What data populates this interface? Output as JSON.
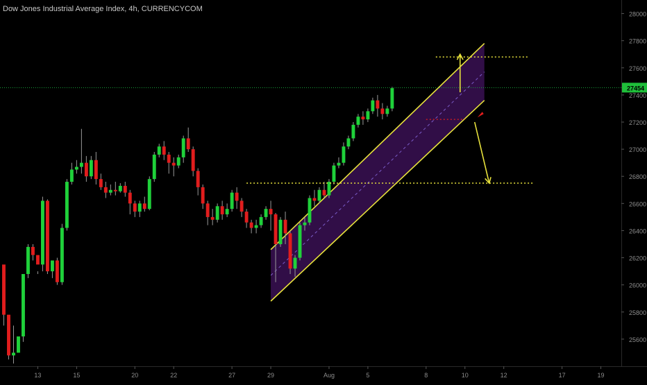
{
  "header": {
    "title": "Dow Jones Industrial Average Index, 4h, CURRENCYCOM"
  },
  "colors": {
    "background": "#000000",
    "up": "#1fd13a",
    "down": "#e11d1d",
    "wick": "#9a9a9a",
    "channel_line": "#e8e23c",
    "channel_fill": "#3a1054",
    "level": "#e8e23c",
    "price_line": "#18a63c",
    "price_badge": "#1fbf3a",
    "arrow": "#e8e23c",
    "marker_red": "#e11d1d",
    "axis_text": "#8c8c8c"
  },
  "chart_data": {
    "type": "candlestick",
    "title": "Dow Jones Industrial Average Index, 4h, CURRENCYCOM",
    "timeframe": "4h",
    "current_price": 27454,
    "current_price_label": "27454",
    "ylim": [
      25400,
      28100
    ],
    "y_ticks": [
      25600,
      25800,
      26000,
      26200,
      26400,
      26600,
      26800,
      27000,
      27200,
      27400,
      27600,
      27800,
      28000
    ],
    "y_tick_labels": [
      "25600",
      "25800",
      "26000",
      "26200",
      "26400",
      "26600",
      "26800",
      "27000",
      "27200",
      "27400",
      "27600",
      "27800",
      "28000"
    ],
    "x_ticks": [
      {
        "label": "13",
        "bar": 7
      },
      {
        "label": "15",
        "bar": 15
      },
      {
        "label": "20",
        "bar": 27
      },
      {
        "label": "22",
        "bar": 35
      },
      {
        "label": "27",
        "bar": 47
      },
      {
        "label": "29",
        "bar": 55
      },
      {
        "label": "Aug",
        "bar": 67
      },
      {
        "label": "5",
        "bar": 75
      },
      {
        "label": "8",
        "bar": 87
      },
      {
        "label": "10",
        "bar": 95
      },
      {
        "label": "12",
        "bar": 103
      },
      {
        "label": "17",
        "bar": 115
      },
      {
        "label": "19",
        "bar": 123
      }
    ],
    "bars_visible": 127,
    "candles": [
      [
        26150,
        26120,
        25780,
        25700
      ],
      [
        25780,
        25600,
        25480,
        25450
      ],
      [
        25480,
        25700,
        25500,
        25420
      ],
      [
        25500,
        25550,
        25620,
        25500
      ],
      [
        25620,
        26050,
        26080,
        25580
      ],
      [
        26080,
        26300,
        26280,
        26050
      ],
      [
        26280,
        26300,
        26220,
        26180
      ],
      [
        26220,
        26100,
        26150,
        26080
      ],
      [
        26150,
        26650,
        26620,
        26100
      ],
      [
        26620,
        26630,
        26100,
        26080
      ],
      [
        26100,
        26120,
        26180,
        26050
      ],
      [
        26180,
        26200,
        26020,
        26000
      ],
      [
        26020,
        26450,
        26420,
        26000
      ],
      [
        26420,
        26780,
        26760,
        26400
      ],
      [
        26760,
        26900,
        26850,
        26740
      ],
      [
        26850,
        26920,
        26870,
        26820
      ],
      [
        26870,
        27150,
        26900,
        26820
      ],
      [
        26900,
        26950,
        26800,
        26760
      ],
      [
        26800,
        26950,
        26920,
        26780
      ],
      [
        26920,
        26980,
        26780,
        26740
      ],
      [
        26780,
        26820,
        26720,
        26700
      ],
      [
        26720,
        26760,
        26680,
        26640
      ],
      [
        26680,
        26740,
        26700,
        26660
      ],
      [
        26700,
        26760,
        26690,
        26660
      ],
      [
        26690,
        26750,
        26730,
        26680
      ],
      [
        26730,
        26760,
        26680,
        26650
      ],
      [
        26680,
        26700,
        26600,
        26520
      ],
      [
        26600,
        26620,
        26540,
        26500
      ],
      [
        26540,
        26620,
        26600,
        26500
      ],
      [
        26600,
        26650,
        26560,
        26540
      ],
      [
        26560,
        26800,
        26780,
        26550
      ],
      [
        26780,
        26980,
        26960,
        26760
      ],
      [
        26960,
        27040,
        27020,
        26940
      ],
      [
        27020,
        27060,
        26960,
        26920
      ],
      [
        26960,
        26980,
        26900,
        26820
      ],
      [
        26900,
        26940,
        26880,
        26800
      ],
      [
        26880,
        26960,
        26940,
        26860
      ],
      [
        26940,
        27100,
        27080,
        26900
      ],
      [
        27080,
        27160,
        27000,
        26980
      ],
      [
        27000,
        27020,
        26840,
        26800
      ],
      [
        26840,
        26860,
        26720,
        26660
      ],
      [
        26720,
        26740,
        26600,
        26560
      ],
      [
        26600,
        26620,
        26500,
        26440
      ],
      [
        26500,
        26560,
        26480,
        26440
      ],
      [
        26480,
        26600,
        26580,
        26460
      ],
      [
        26580,
        26620,
        26520,
        26480
      ],
      [
        26520,
        26600,
        26560,
        26500
      ],
      [
        26560,
        26700,
        26680,
        26540
      ],
      [
        26680,
        26720,
        26620,
        26560
      ],
      [
        26620,
        26640,
        26540,
        26500
      ],
      [
        26540,
        26560,
        26460,
        26420
      ],
      [
        26460,
        26480,
        26420,
        26380
      ],
      [
        26420,
        26480,
        26440,
        26380
      ],
      [
        26440,
        26520,
        26500,
        26420
      ],
      [
        26500,
        26580,
        26560,
        26480
      ],
      [
        26560,
        26620,
        26520,
        26400
      ],
      [
        26520,
        26530,
        26300,
        26020
      ],
      [
        26300,
        26500,
        26480,
        26280
      ],
      [
        26480,
        26540,
        26380,
        26300
      ],
      [
        26380,
        26400,
        26120,
        26080
      ],
      [
        26120,
        26220,
        26200,
        26060
      ],
      [
        26200,
        26460,
        26440,
        26180
      ],
      [
        26440,
        26500,
        26460,
        26400
      ],
      [
        26460,
        26660,
        26640,
        26440
      ],
      [
        26640,
        26700,
        26620,
        26580
      ],
      [
        26620,
        26720,
        26700,
        26600
      ],
      [
        26700,
        26760,
        26660,
        26640
      ],
      [
        26660,
        26780,
        26760,
        26640
      ],
      [
        26760,
        26900,
        26880,
        26740
      ],
      [
        26880,
        26940,
        26900,
        26860
      ],
      [
        26900,
        27050,
        27020,
        26880
      ],
      [
        27020,
        27100,
        27080,
        27000
      ],
      [
        27080,
        27200,
        27180,
        27060
      ],
      [
        27180,
        27260,
        27240,
        27160
      ],
      [
        27240,
        27280,
        27220,
        27180
      ],
      [
        27220,
        27300,
        27280,
        27200
      ],
      [
        27280,
        27380,
        27360,
        27260
      ],
      [
        27360,
        27400,
        27300,
        27240
      ],
      [
        27300,
        27340,
        27260,
        27220
      ],
      [
        27260,
        27320,
        27300,
        27240
      ],
      [
        27300,
        27460,
        27450,
        27280
      ]
    ],
    "channel": {
      "upper": [
        {
          "bar": 55,
          "price": 26260
        },
        {
          "bar": 99,
          "price": 27780
        }
      ],
      "lower": [
        {
          "bar": 55,
          "price": 25880
        },
        {
          "bar": 99,
          "price": 27360
        }
      ],
      "mid": [
        {
          "bar": 55,
          "price": 26070
        },
        {
          "bar": 99,
          "price": 27570
        }
      ]
    },
    "levels": [
      {
        "price": 27680,
        "from_bar": 89,
        "to_bar": 108
      },
      {
        "price": 26750,
        "from_bar": 50,
        "to_bar": 109
      },
      {
        "price": 27220,
        "from_bar": 87,
        "to_bar": 95,
        "style": "red-dotted"
      }
    ],
    "annotations": [
      {
        "type": "arrow",
        "from": {
          "bar": 94,
          "price": 27420
        },
        "to": {
          "bar": 94,
          "price": 27700
        }
      },
      {
        "type": "arrow",
        "from": {
          "bar": 97,
          "price": 27200
        },
        "to": {
          "bar": 100,
          "price": 26750
        }
      },
      {
        "type": "marker",
        "at": {
          "bar": 98,
          "price": 27250
        }
      }
    ]
  }
}
